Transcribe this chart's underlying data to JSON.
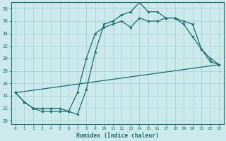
{
  "xlabel": "Humidex (Indice chaleur)",
  "bg_color": "#cce9ec",
  "line_color": "#1a6b6b",
  "grid_color": "#aed4d8",
  "xlim": [
    -0.5,
    23.5
  ],
  "ylim": [
    19.5,
    39
  ],
  "xticks": [
    0,
    1,
    2,
    3,
    4,
    5,
    6,
    7,
    8,
    9,
    10,
    11,
    12,
    13,
    14,
    15,
    16,
    17,
    18,
    19,
    20,
    21,
    22,
    23
  ],
  "yticks": [
    20,
    22,
    24,
    26,
    28,
    30,
    32,
    34,
    36,
    38
  ],
  "line1_x": [
    0,
    1,
    2,
    3,
    4,
    5,
    6,
    7,
    8,
    9,
    10,
    11,
    12,
    13,
    14,
    15,
    16,
    17,
    18,
    19,
    20,
    21,
    22,
    23
  ],
  "line1_y": [
    24.5,
    23,
    22,
    21.5,
    21.5,
    21.5,
    21.5,
    21,
    25,
    31,
    35.5,
    36,
    37,
    37.5,
    39,
    37.5,
    37.5,
    36.5,
    36.5,
    36,
    35.5,
    31.5,
    30,
    29
  ],
  "line2_x": [
    0,
    1,
    2,
    3,
    4,
    5,
    6,
    7,
    8,
    9,
    10,
    11,
    12,
    13,
    14,
    15,
    16,
    17,
    18,
    19,
    20,
    21,
    22,
    23
  ],
  "line2_y": [
    24.5,
    23,
    22,
    22,
    22,
    22,
    21.5,
    24.5,
    30,
    34,
    35,
    35.5,
    36,
    35,
    36.5,
    36,
    36,
    36.5,
    36.5,
    35.5,
    33.5,
    31.5,
    29.5,
    29
  ],
  "line3_x": [
    0,
    23
  ],
  "line3_y": [
    24.5,
    29
  ]
}
